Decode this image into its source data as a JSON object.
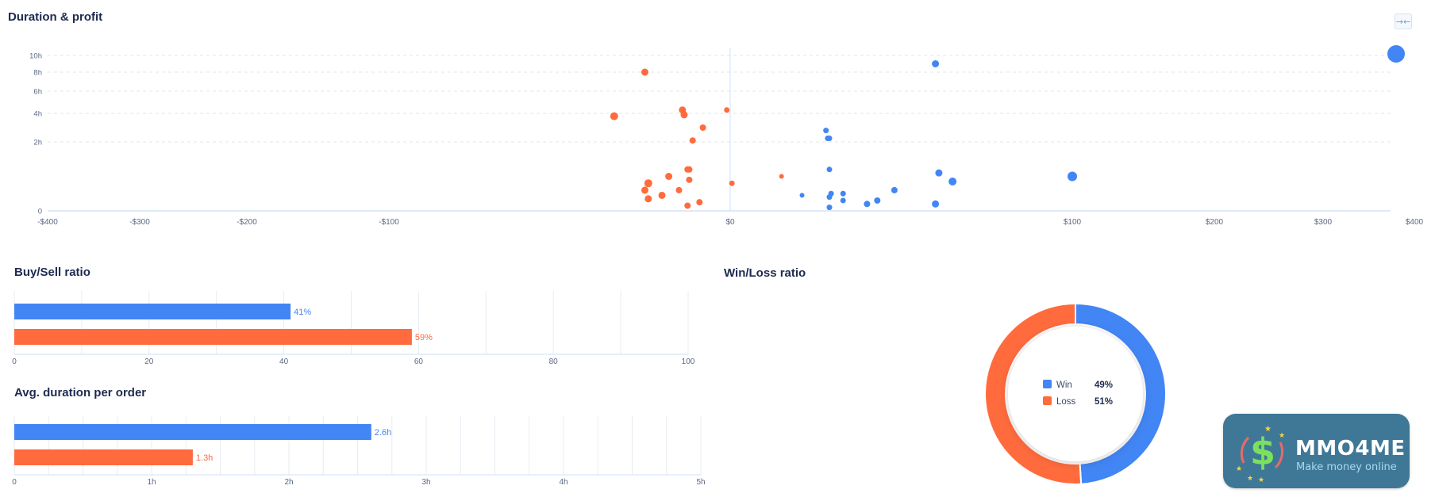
{
  "duration_profit": {
    "title": "Duration & profit",
    "collapse_icon": "→←",
    "x_ticks": [
      "-$400",
      "-$300",
      "-$200",
      "-$100",
      "$0",
      "$100",
      "$200",
      "$300",
      "$400"
    ],
    "y_ticks": [
      "10h",
      "8h",
      "6h",
      "4h",
      "2h",
      "0"
    ]
  },
  "buy_sell": {
    "title": "Buy/Sell ratio",
    "ticks": [
      "0",
      "20",
      "40",
      "60",
      "80",
      "100"
    ],
    "bars": [
      {
        "label": "41%",
        "value": 41,
        "color": "#4285f4"
      },
      {
        "label": "59%",
        "value": 59,
        "color": "#ff6b3d"
      }
    ]
  },
  "avg_duration": {
    "title": "Avg. duration per order",
    "ticks": [
      "0",
      "1h",
      "2h",
      "3h",
      "4h",
      "5h"
    ],
    "bars": [
      {
        "label": "2.6h",
        "value": 2.6,
        "color": "#4285f4"
      },
      {
        "label": "1.3h",
        "value": 1.3,
        "color": "#ff6b3d"
      }
    ]
  },
  "win_loss": {
    "title": "Win/Loss ratio",
    "items": [
      {
        "label": "Win",
        "value": "49%",
        "pct": 49,
        "color": "#4285f4"
      },
      {
        "label": "Loss",
        "value": "51%",
        "pct": 51,
        "color": "#ff6b3d"
      }
    ]
  },
  "logo": {
    "name": "MMO4ME",
    "tagline": "Make money online",
    "symbol": "$"
  },
  "chart_data": [
    {
      "type": "scatter",
      "title": "Duration & profit",
      "xlabel": "",
      "ylabel": "",
      "x_axis_ticks": [
        "-$400",
        "-$300",
        "-$200",
        "-$100",
        "$0",
        "$100",
        "$200",
        "$300",
        "$400"
      ],
      "y_axis_ticks": [
        "0",
        "2h",
        "4h",
        "6h",
        "8h",
        "10h"
      ],
      "series": [
        {
          "color": "#ff6b3d",
          "points": [
            {
              "x": -25,
              "y": 8.0,
              "r": 4.5
            },
            {
              "x": -34,
              "y": 3.8,
              "r": 5
            },
            {
              "x": -14,
              "y": 4.3,
              "r": 4.5
            },
            {
              "x": -13.5,
              "y": 3.9,
              "r": 4.5
            },
            {
              "x": -1,
              "y": 4.3,
              "r": 3.5
            },
            {
              "x": -8,
              "y": 3.0,
              "r": 4
            },
            {
              "x": -11,
              "y": 2.1,
              "r": 4
            },
            {
              "x": -12.5,
              "y": 1.2,
              "r": 4
            },
            {
              "x": -12,
              "y": 1.2,
              "r": 4
            },
            {
              "x": -18,
              "y": 1.0,
              "r": 4.5
            },
            {
              "x": -12,
              "y": 0.9,
              "r": 4
            },
            {
              "x": 0.5,
              "y": 0.8,
              "r": 3.5
            },
            {
              "x": -24,
              "y": 0.8,
              "r": 5
            },
            {
              "x": -25,
              "y": 0.6,
              "r": 4.5
            },
            {
              "x": -15,
              "y": 0.6,
              "r": 4
            },
            {
              "x": -20,
              "y": 0.45,
              "r": 4.5
            },
            {
              "x": -24,
              "y": 0.35,
              "r": 4.5
            },
            {
              "x": -9,
              "y": 0.25,
              "r": 4
            },
            {
              "x": -12.5,
              "y": 0.15,
              "r": 4
            },
            {
              "x": 15,
              "y": 1.0,
              "r": 3
            }
          ]
        },
        {
          "color": "#4285f4",
          "points": [
            {
              "x": 60,
              "y": 9.0,
              "r": 4.5
            },
            {
              "x": 380,
              "y": 10.2,
              "r": 11
            },
            {
              "x": 28,
              "y": 2.8,
              "r": 3.5
            },
            {
              "x": 28.5,
              "y": 2.25,
              "r": 3.5
            },
            {
              "x": 29,
              "y": 2.25,
              "r": 3.5
            },
            {
              "x": 29,
              "y": 1.2,
              "r": 3.5
            },
            {
              "x": 61,
              "y": 1.1,
              "r": 4.5
            },
            {
              "x": 65,
              "y": 0.85,
              "r": 5
            },
            {
              "x": 100,
              "y": 1.0,
              "r": 6
            },
            {
              "x": 48,
              "y": 0.6,
              "r": 4
            },
            {
              "x": 29.5,
              "y": 0.5,
              "r": 3.5
            },
            {
              "x": 33,
              "y": 0.5,
              "r": 3.5
            },
            {
              "x": 21,
              "y": 0.45,
              "r": 3
            },
            {
              "x": 29,
              "y": 0.4,
              "r": 3.5
            },
            {
              "x": 33,
              "y": 0.3,
              "r": 3.5
            },
            {
              "x": 43,
              "y": 0.3,
              "r": 4
            },
            {
              "x": 40,
              "y": 0.2,
              "r": 4
            },
            {
              "x": 60,
              "y": 0.2,
              "r": 4.5
            },
            {
              "x": 29,
              "y": 0.1,
              "r": 3.5
            }
          ]
        }
      ]
    },
    {
      "type": "bar",
      "title": "Buy/Sell ratio",
      "categories": [
        "",
        ""
      ],
      "values": [
        41,
        59
      ],
      "xlim": [
        0,
        100
      ]
    },
    {
      "type": "bar",
      "title": "Avg. duration per order",
      "categories": [
        "",
        ""
      ],
      "values": [
        2.6,
        1.3
      ],
      "xlim": [
        0,
        5
      ]
    },
    {
      "type": "pie",
      "title": "Win/Loss ratio",
      "categories": [
        "Win",
        "Loss"
      ],
      "values": [
        49,
        51
      ]
    }
  ]
}
